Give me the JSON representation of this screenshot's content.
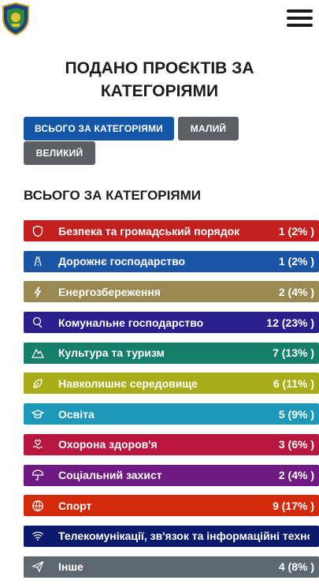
{
  "header": {
    "logo_icon": "coat-of-arms-icon",
    "menu_icon": "hamburger-menu-icon"
  },
  "page": {
    "title": "ПОДАНО ПРОЄКТІВ ЗА КАТЕГОРІЯМИ"
  },
  "filters": [
    {
      "label": "ВСЬОГО ЗА КАТЕГОРІЯМИ",
      "active": true
    },
    {
      "label": "МАЛИЙ",
      "active": false
    },
    {
      "label": "ВЕЛИКИЙ",
      "active": false
    }
  ],
  "section": {
    "title": "ВСЬОГО ЗА КАТЕГОРІЯМИ"
  },
  "categories": [
    {
      "label": "Безпека та громадський порядок",
      "count": "1 (2% )",
      "color": "#c21f1f",
      "icon": "shield-icon"
    },
    {
      "label": "Дорожнє господарство",
      "count": "1 (2% )",
      "color": "#1a55a5",
      "icon": "road-icon"
    },
    {
      "label": "Енергозбереження",
      "count": "2 (4% )",
      "color": "#9a8950",
      "icon": "lightning-icon"
    },
    {
      "label": "Комунальне господарство",
      "count": "12 (23% )",
      "color": "#2a1f8c",
      "icon": "utilities-icon"
    },
    {
      "label": "Культура та туризм",
      "count": "7 (13% )",
      "color": "#157f6c",
      "icon": "mountains-icon"
    },
    {
      "label": "Навколишнє середовище",
      "count": "6 (11% )",
      "color": "#a9ae18",
      "icon": "leaf-icon"
    },
    {
      "label": "Освіта",
      "count": "5 (9% )",
      "color": "#1d98b8",
      "icon": "graduation-cap-icon"
    },
    {
      "label": "Охорона здоров'я",
      "count": "3 (6% )",
      "color": "#b8163f",
      "icon": "heart-hand-icon"
    },
    {
      "label": "Соціальний захист",
      "count": "2 (4% )",
      "color": "#6e1a82",
      "icon": "umbrella-icon"
    },
    {
      "label": "Спорт",
      "count": "9 (17% )",
      "color": "#d42a0c",
      "icon": "ball-icon"
    },
    {
      "label": "Телекомунікації, зв'язок та інформаційні технології",
      "count": "",
      "color": "#0c1a6e",
      "icon": "wifi-icon"
    },
    {
      "label": "Інше",
      "count": "4 (8% )",
      "color": "#5c6770",
      "icon": "paper-plane-icon"
    }
  ]
}
